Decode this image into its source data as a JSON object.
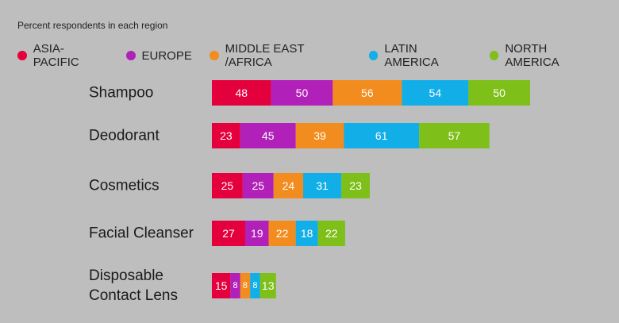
{
  "chart_data": {
    "type": "bar",
    "stacked": true,
    "orientation": "horizontal",
    "subtitle": "Percent respondents in each region",
    "legend_placement": "top-left",
    "grid": false,
    "categories": [
      "Shampoo",
      "Deodorant",
      "Cosmetics",
      "Facial Cleanser",
      "Disposable Contact Lens"
    ],
    "category_lines": [
      [
        "Shampoo"
      ],
      [
        "Deodorant"
      ],
      [
        "Cosmetics"
      ],
      [
        "Facial Cleanser"
      ],
      [
        "Disposable",
        "Contact Lens"
      ]
    ],
    "series": [
      {
        "name": "ASIA-PACIFIC",
        "color": "#e4003d",
        "values": [
          48,
          23,
          25,
          27,
          15
        ]
      },
      {
        "name": "EUROPE",
        "color": "#b120b8",
        "values": [
          50,
          45,
          25,
          19,
          8
        ]
      },
      {
        "name": "MIDDLE EAST /AFRICA",
        "color": "#f28c1e",
        "values": [
          56,
          39,
          24,
          22,
          8
        ]
      },
      {
        "name": "LATIN AMERICA",
        "color": "#12aee8",
        "values": [
          54,
          61,
          31,
          18,
          8
        ]
      },
      {
        "name": "NORTH AMERICA",
        "color": "#7fbf19",
        "values": [
          50,
          57,
          23,
          22,
          13
        ]
      }
    ]
  }
}
